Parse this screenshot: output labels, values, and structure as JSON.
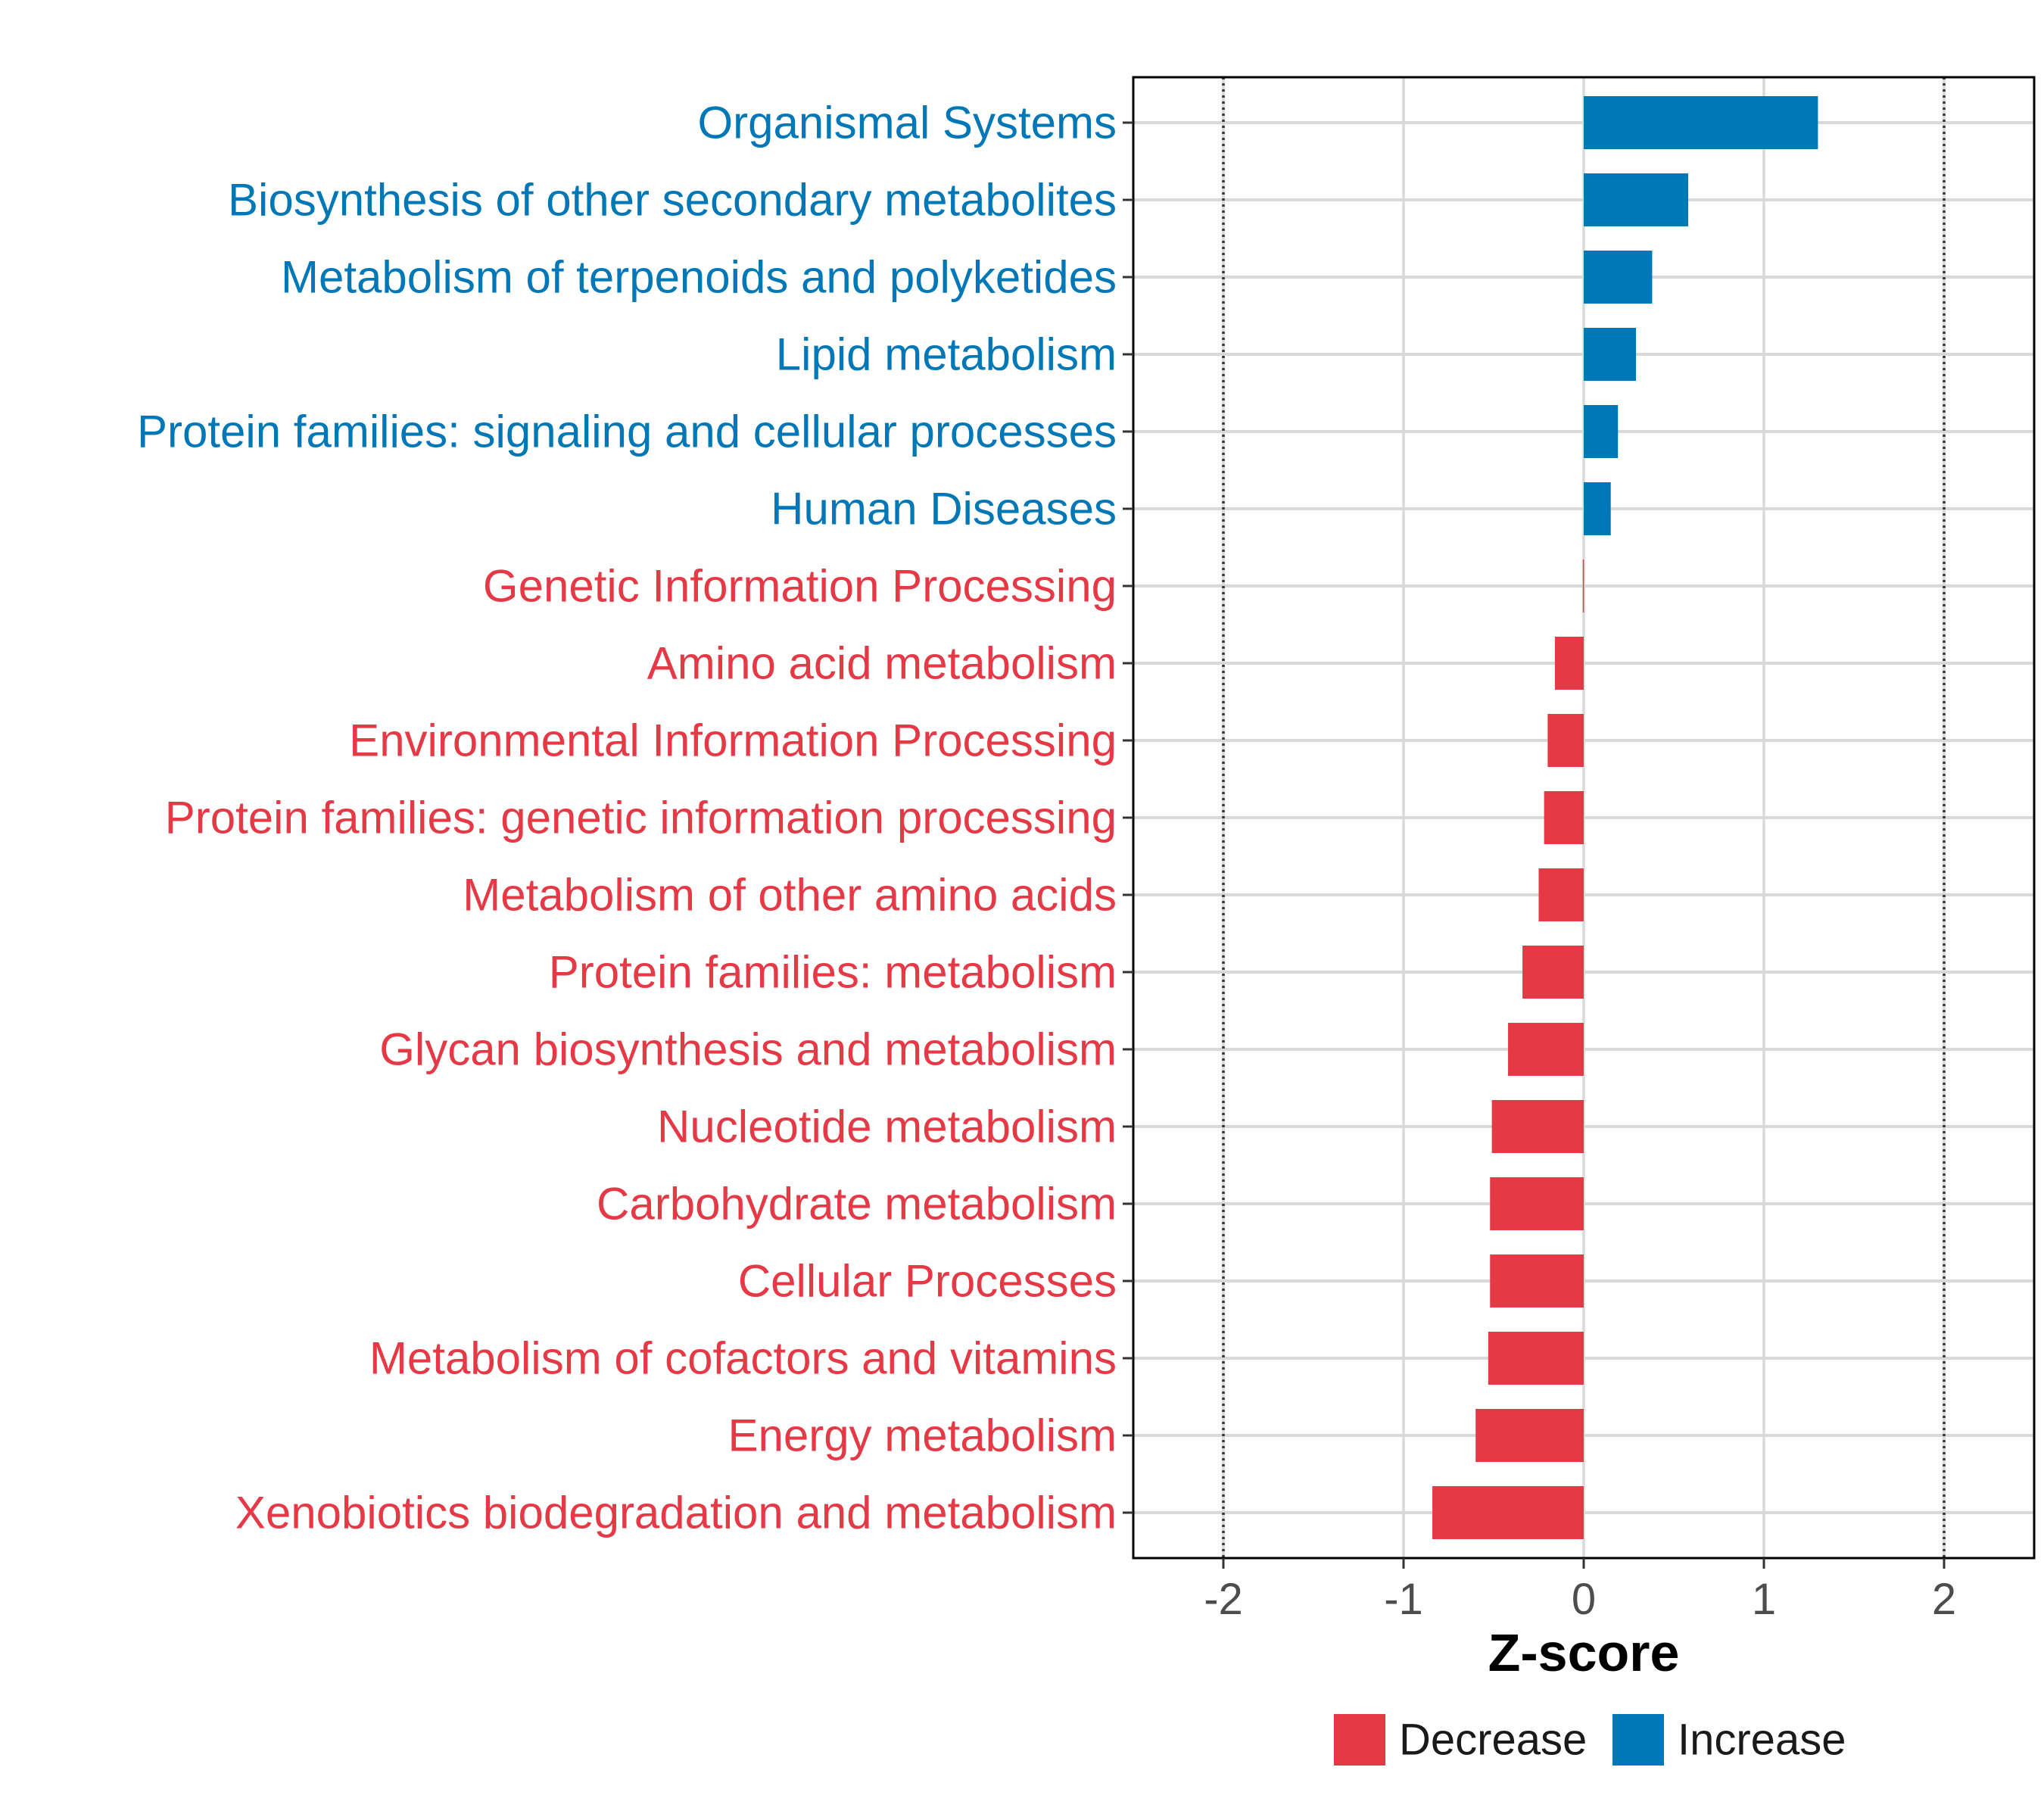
{
  "chart_data": {
    "type": "bar",
    "orientation": "horizontal",
    "title": "",
    "xlabel": "Z-score",
    "ylabel": "",
    "xlim": [
      -2.5,
      2.5
    ],
    "xticks": [
      -2,
      -1,
      0,
      1,
      2
    ],
    "reference_lines": [
      -2,
      2
    ],
    "grid": true,
    "legend_position": "bottom",
    "colors": {
      "Decrease": "#e63946",
      "Increase": "#0077b6"
    },
    "legend": [
      {
        "name": "Decrease",
        "color": "#e63946"
      },
      {
        "name": "Increase",
        "color": "#0077b6"
      }
    ],
    "categories": [
      "Organismal Systems",
      "Biosynthesis of other secondary metabolites",
      "Metabolism of terpenoids and polyketides",
      "Lipid metabolism",
      "Protein families: signaling and cellular processes",
      "Human Diseases",
      "Genetic Information Processing",
      "Amino acid metabolism",
      "Environmental Information Processing",
      "Protein families: genetic information processing",
      "Metabolism of other amino acids",
      "Protein families: metabolism",
      "Glycan biosynthesis and metabolism",
      "Nucleotide metabolism",
      "Carbohydrate metabolism",
      "Cellular Processes",
      "Metabolism of cofactors and vitamins",
      "Energy metabolism",
      "Xenobiotics biodegradation and metabolism"
    ],
    "values": [
      1.3,
      0.58,
      0.38,
      0.29,
      0.19,
      0.15,
      -0.005,
      -0.16,
      -0.2,
      -0.22,
      -0.25,
      -0.34,
      -0.42,
      -0.51,
      -0.52,
      -0.52,
      -0.53,
      -0.6,
      -0.84
    ],
    "groups": [
      "Increase",
      "Increase",
      "Increase",
      "Increase",
      "Increase",
      "Increase",
      "Decrease",
      "Decrease",
      "Decrease",
      "Decrease",
      "Decrease",
      "Decrease",
      "Decrease",
      "Decrease",
      "Decrease",
      "Decrease",
      "Decrease",
      "Decrease",
      "Decrease"
    ]
  }
}
